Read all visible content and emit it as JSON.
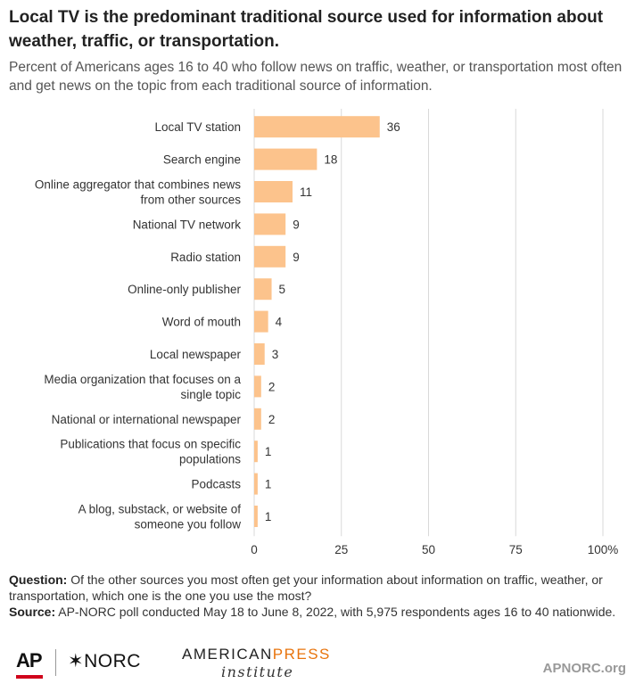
{
  "title": "Local TV is the predominant traditional source used for information about weather, traffic, or transportation.",
  "subtitle": "Percent of Americans ages 16 to 40 who follow news on traffic, weather, or transportation most often and get news on the topic from each traditional source of information.",
  "chart_data": {
    "type": "bar",
    "orientation": "horizontal",
    "categories": [
      [
        "Local TV station"
      ],
      [
        "Search engine"
      ],
      [
        "Online aggregator that combines news",
        "from other sources"
      ],
      [
        "National TV network"
      ],
      [
        "Radio station"
      ],
      [
        "Online-only publisher"
      ],
      [
        "Word of mouth"
      ],
      [
        "Local newspaper"
      ],
      [
        "Media organization that focuses on a",
        "single topic"
      ],
      [
        "National or international newspaper"
      ],
      [
        "Publications that focus on specific",
        "populations"
      ],
      [
        "Podcasts"
      ],
      [
        "A blog, substack, or website of",
        "someone you follow"
      ]
    ],
    "values": [
      36,
      18,
      11,
      9,
      9,
      5,
      4,
      3,
      2,
      2,
      1,
      1,
      1
    ],
    "xlim": [
      0,
      100
    ],
    "xticks": [
      "0",
      "25",
      "50",
      "75",
      "100%"
    ],
    "xtick_values": [
      0,
      25,
      50,
      75,
      100
    ],
    "grid": true,
    "bar_color": "#fcc38c",
    "grid_color": "#d9d9d9"
  },
  "notes": {
    "question_label": "Question:",
    "question_text": " Of the other sources you most often get your information about information on traffic, weather, or transportation, which one is the one you use the most?",
    "source_label": "Source:",
    "source_text": " AP-NORC poll conducted May 18 to June 8, 2022, with 5,975 respondents ages 16 to 40 nationwide."
  },
  "footer": {
    "ap": "AP",
    "norc": "✶NORC",
    "api_part1": "AMERICAN",
    "api_part2": "PRESS",
    "api_sub": "institute",
    "site": "APNORC.org"
  },
  "colors": {
    "accent": "#e8740d",
    "ap_red": "#d0021b"
  }
}
